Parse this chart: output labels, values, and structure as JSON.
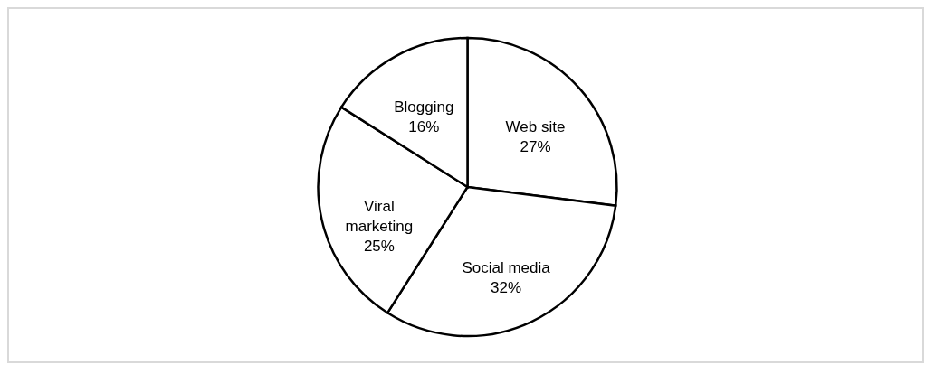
{
  "chart_data": {
    "type": "pie",
    "categories": [
      "Web site",
      "Social media",
      "Viral marketing",
      "Blogging"
    ],
    "values": [
      27,
      32,
      25,
      16
    ],
    "value_labels": [
      "27%",
      "32%",
      "25%",
      "16%"
    ],
    "colors": [
      "#ffffff",
      "#ffffff",
      "#ffffff",
      "#ffffff"
    ]
  }
}
